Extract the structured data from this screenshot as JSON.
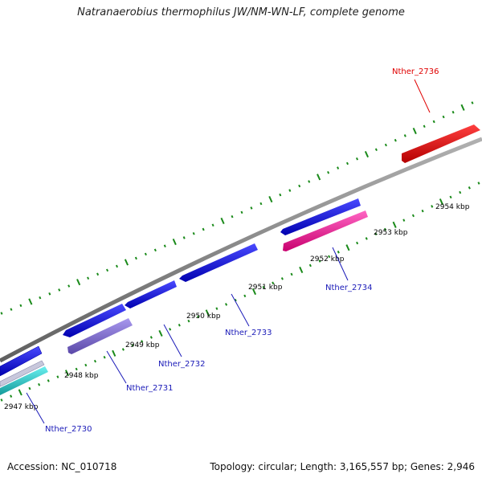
{
  "title": "Natranaerobius thermophilus JW/NM-WN-LF, complete genome",
  "footer": {
    "accession": "Accession: NC_010718",
    "summary": "Topology: circular; Length: 3,165,557 bp; Genes: 2,946"
  },
  "colors": {
    "backbone": "#8a8a8a",
    "tick": "#1a8a1a",
    "forward_gene": "#1111dd",
    "reverse_gene": "#ff1493",
    "highlight_gene": "#e00000",
    "purple_gene": "#7b68c9",
    "cyan_gene": "#22cccc",
    "label_default": "#1a1ab8",
    "label_highlight": "#e00000"
  },
  "tick_labels": [
    "2947 kbp",
    "2948 kbp",
    "2949 kbp",
    "2950 kbp",
    "2951 kbp",
    "2952 kbp",
    "2953 kbp",
    "2954 kbp"
  ],
  "gene_labels": [
    {
      "id": "g2730",
      "text": "Nther_2730",
      "color": "#1a1ab8"
    },
    {
      "id": "g2731",
      "text": "Nther_2731",
      "color": "#1a1ab8"
    },
    {
      "id": "g2732",
      "text": "Nther_2732",
      "color": "#1a1ab8"
    },
    {
      "id": "g2733",
      "text": "Nther_2733",
      "color": "#1a1ab8"
    },
    {
      "id": "g2734",
      "text": "Nther_2734",
      "color": "#1a1ab8"
    },
    {
      "id": "g2736",
      "text": "Nther_2736",
      "color": "#e00000"
    }
  ]
}
